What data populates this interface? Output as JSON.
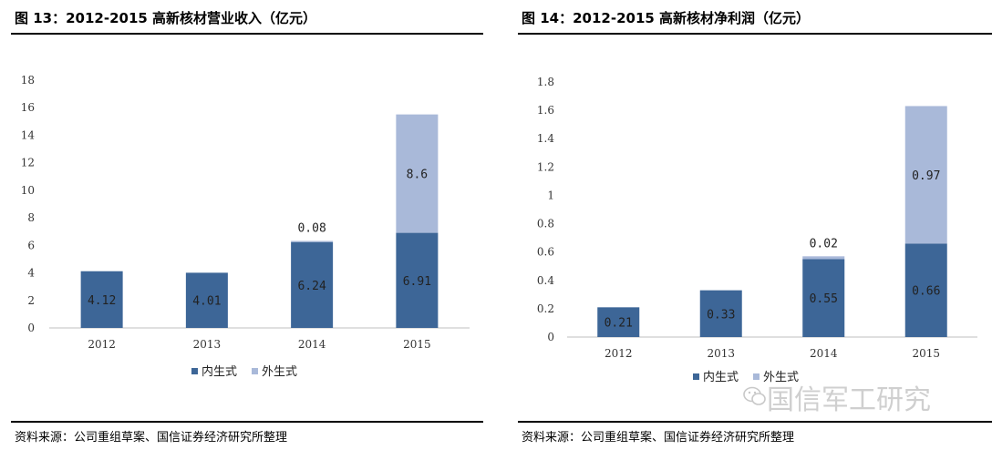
{
  "left": {
    "title": "图 13：2012-2015 高新核材营业收入（亿元）",
    "source": "资料来源：公司重组草案、国信证券经济研究所整理"
  },
  "right": {
    "title": "图 14：2012-2015 高新核材净利润（亿元）",
    "source": "资料来源：公司重组草案、国信证券经济研究所整理"
  },
  "watermark": {
    "text": "国信军工研究",
    "icon": "wechat-icon"
  },
  "colors": {
    "inner": "#3d6697",
    "outer": "#a9b9d9"
  },
  "chart_data": [
    {
      "type": "bar",
      "stacked": true,
      "categories": [
        "2012",
        "2013",
        "2014",
        "2015"
      ],
      "series": [
        {
          "name": "内生式",
          "values": [
            4.12,
            4.01,
            6.24,
            6.91
          ],
          "labels": [
            "4.12",
            "4.01",
            "6.24",
            "6.91"
          ]
        },
        {
          "name": "外生式",
          "values": [
            null,
            null,
            0.08,
            8.6
          ],
          "labels": [
            "",
            "",
            "0.08",
            "8.6"
          ]
        }
      ],
      "yticks": [
        "0",
        "2",
        "4",
        "6",
        "8",
        "10",
        "12",
        "14",
        "16",
        "18"
      ],
      "ylim": [
        0,
        18
      ],
      "grid": false,
      "legend": "bottom"
    },
    {
      "type": "bar",
      "stacked": true,
      "categories": [
        "2012",
        "2013",
        "2014",
        "2015"
      ],
      "series": [
        {
          "name": "内生式",
          "values": [
            0.21,
            0.33,
            0.55,
            0.66
          ],
          "labels": [
            "0.21",
            "0.33",
            "0.55",
            "0.66"
          ]
        },
        {
          "name": "外生式",
          "values": [
            null,
            null,
            0.02,
            0.97
          ],
          "labels": [
            "",
            "",
            "0.02",
            "0.97"
          ]
        }
      ],
      "yticks": [
        "0",
        "0.2",
        "0.4",
        "0.6",
        "0.8",
        "1",
        "1.2",
        "1.4",
        "1.6",
        "1.8"
      ],
      "ylim": [
        0,
        1.8
      ],
      "grid": false,
      "legend": "bottom"
    }
  ]
}
